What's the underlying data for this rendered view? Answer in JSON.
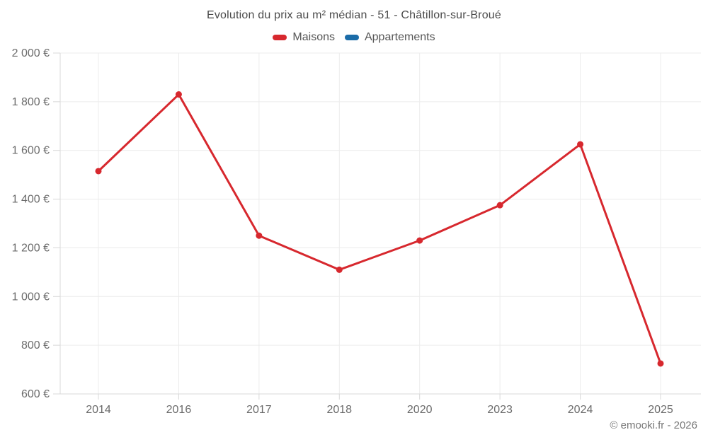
{
  "chart_data": {
    "type": "line",
    "title": "Evolution du prix au m² médian - 51 - Châtillon-sur-Broué",
    "categories": [
      "2014",
      "2016",
      "2017",
      "2018",
      "2020",
      "2023",
      "2024",
      "2025"
    ],
    "series": [
      {
        "name": "Maisons",
        "color": "#d7282e",
        "values": [
          1515,
          1830,
          1250,
          1110,
          1230,
          1375,
          1625,
          725
        ]
      },
      {
        "name": "Appartements",
        "color": "#1b6ca8",
        "values": []
      }
    ],
    "xlabel": "",
    "ylabel": "",
    "ylim": [
      600,
      2000
    ],
    "ytick_step": 200,
    "ytick_labels": [
      "600 €",
      "800 €",
      "1 000 €",
      "1 200 €",
      "1 400 €",
      "1 600 €",
      "1 800 €",
      "2 000 €"
    ],
    "grid": true,
    "legend_position": "top",
    "marker": "circle"
  },
  "footer": {
    "credit": "© emooki.fr - 2026"
  },
  "colors": {
    "background": "#ffffff",
    "grid": "#ececec",
    "tick": "#d8d8d8",
    "axis_label": "#6b6b6b",
    "title": "#4a4a4a",
    "legend_text": "#565656",
    "footer_text": "#787878"
  }
}
